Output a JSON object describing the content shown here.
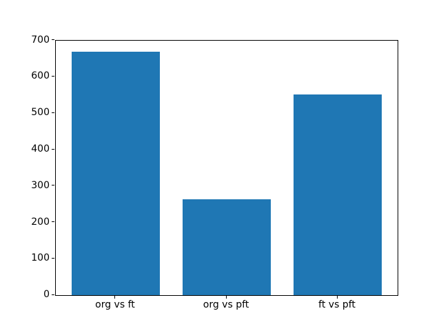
{
  "figure": {
    "background": "#ffffff",
    "axis_color": "#000000",
    "text_color": "#000000"
  },
  "chart_data": {
    "type": "bar",
    "categories": [
      "org vs ft",
      "org vs pft",
      "ft vs pft"
    ],
    "values": [
      669,
      264,
      552
    ],
    "title": "",
    "xlabel": "",
    "ylabel": "",
    "ylim": [
      0,
      700
    ],
    "yticks": [
      0,
      100,
      200,
      300,
      400,
      500,
      600,
      700
    ],
    "xlim": [
      -0.54,
      2.54
    ],
    "bar_width": 0.8,
    "bar_color": "#1f77b4",
    "grid": false,
    "legend_position": "none"
  }
}
